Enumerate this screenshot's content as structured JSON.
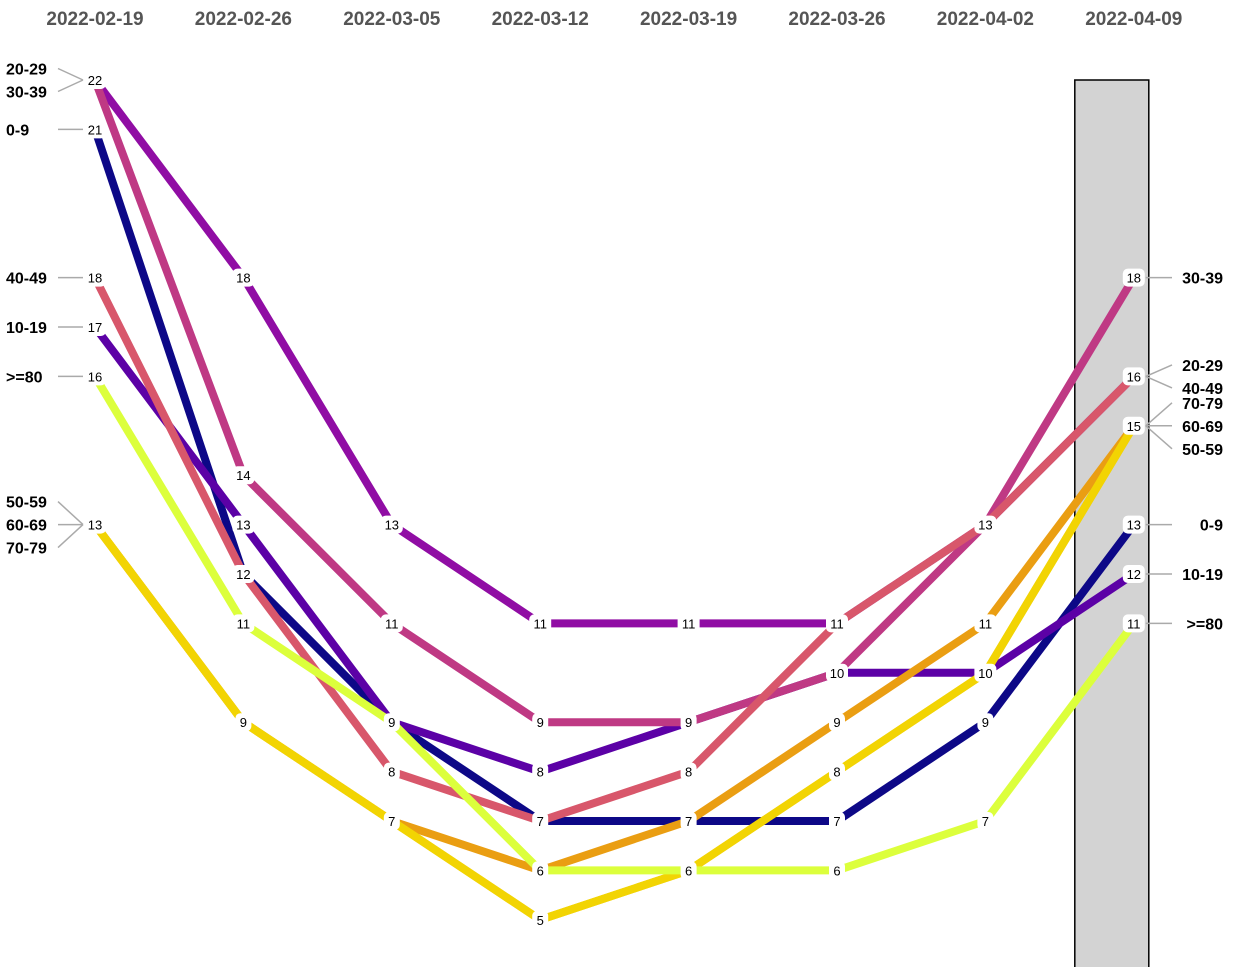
{
  "chart_data": {
    "type": "line",
    "x": [
      "2022-02-19",
      "2022-02-26",
      "2022-03-05",
      "2022-03-12",
      "2022-03-19",
      "2022-03-26",
      "2022-04-02",
      "2022-04-09"
    ],
    "highlight_x": "2022-04-09",
    "highlight_color": "#d3d3d3",
    "y_direction": "inverted",
    "series": [
      {
        "name": "0-9",
        "color": "#0d0887",
        "values": [
          21,
          12,
          9,
          7,
          7,
          7,
          9,
          13
        ]
      },
      {
        "name": "10-19",
        "color": "#5c01a6",
        "values": [
          17,
          13,
          9,
          8,
          9,
          10,
          10,
          12
        ]
      },
      {
        "name": "20-29",
        "color": "#900da4",
        "values": [
          22,
          18,
          13,
          11,
          11,
          11,
          13,
          16
        ]
      },
      {
        "name": "30-39",
        "color": "#bf3984",
        "values": [
          22,
          14,
          11,
          9,
          9,
          10,
          13,
          18
        ]
      },
      {
        "name": "40-49",
        "color": "#d8576b",
        "values": [
          18,
          12,
          8,
          7,
          8,
          11,
          13,
          16
        ]
      },
      {
        "name": "50-59",
        "color": "#ea9e12",
        "values": [
          13,
          9,
          7,
          6,
          7,
          9,
          11,
          15
        ]
      },
      {
        "name": "60-69",
        "color": "#edca10",
        "values": [
          13,
          9,
          7,
          5,
          6,
          8,
          10,
          15
        ]
      },
      {
        "name": "70-79",
        "color": "#f2d403",
        "values": [
          13,
          9,
          7,
          5,
          6,
          8,
          10,
          15
        ]
      },
      {
        "name": ">=80",
        "color": "#dcff3c",
        "values": [
          16,
          11,
          9,
          6,
          6,
          6,
          7,
          11
        ]
      }
    ],
    "left_labels": [
      {
        "value": 22,
        "names": [
          "20-29",
          "30-39"
        ]
      },
      {
        "value": 21,
        "names": [
          "0-9"
        ]
      },
      {
        "value": 18,
        "names": [
          "40-49"
        ]
      },
      {
        "value": 17,
        "names": [
          "10-19"
        ]
      },
      {
        "value": 16,
        "names": [
          ">=80"
        ]
      },
      {
        "value": 13,
        "names": [
          "50-59",
          "60-69",
          "70-79"
        ]
      }
    ],
    "right_labels": [
      {
        "value": 18,
        "names": [
          "30-39"
        ]
      },
      {
        "value": 16,
        "names": [
          "20-29",
          "40-49"
        ]
      },
      {
        "value": 15,
        "names": [
          "70-79",
          "60-69",
          "50-59"
        ]
      },
      {
        "value": 13,
        "names": [
          "0-9"
        ]
      },
      {
        "value": 12,
        "names": [
          "10-19"
        ]
      },
      {
        "value": 11,
        "names": [
          ">=80"
        ]
      }
    ]
  }
}
